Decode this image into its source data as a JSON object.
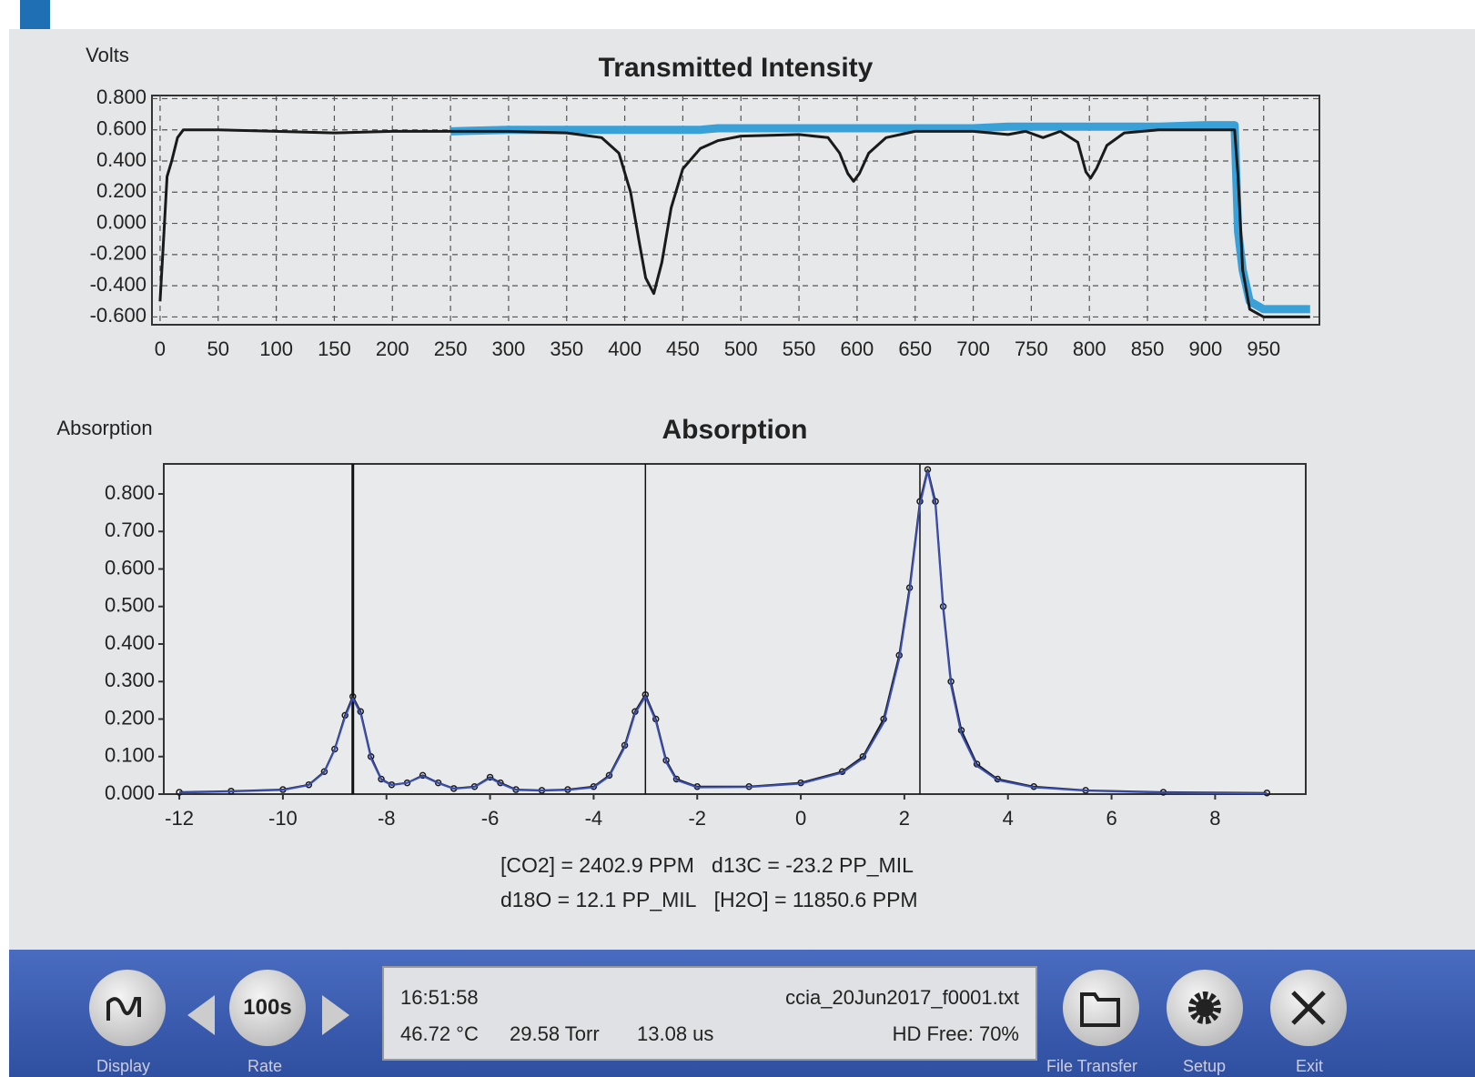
{
  "chart_data": [
    {
      "type": "line",
      "title": "Transmitted Intensity",
      "ylabel": "Volts",
      "x": [
        0,
        3,
        6,
        10,
        15,
        20,
        30,
        50,
        100,
        150,
        200,
        250,
        300,
        350,
        380,
        395,
        405,
        412,
        418,
        425,
        432,
        440,
        450,
        465,
        480,
        500,
        550,
        575,
        585,
        592,
        597,
        602,
        610,
        625,
        650,
        700,
        730,
        745,
        760,
        775,
        790,
        797,
        801,
        806,
        815,
        830,
        860,
        900,
        925,
        928,
        932,
        938,
        950,
        990
      ],
      "series": [
        {
          "color": "#3aa0d8",
          "width": 9,
          "values": [
            null,
            null,
            null,
            null,
            null,
            null,
            null,
            null,
            null,
            null,
            null,
            0.59,
            0.6,
            0.6,
            0.6,
            0.6,
            0.6,
            0.6,
            0.6,
            0.6,
            0.6,
            0.6,
            0.6,
            0.6,
            0.61,
            0.61,
            0.61,
            0.61,
            0.61,
            0.61,
            0.61,
            0.61,
            0.61,
            0.61,
            0.61,
            0.61,
            0.62,
            0.62,
            0.62,
            0.62,
            0.62,
            0.62,
            0.62,
            0.62,
            0.62,
            0.62,
            0.62,
            0.63,
            0.63,
            -0.05,
            -0.3,
            -0.5,
            -0.55,
            -0.55
          ]
        },
        {
          "color": "#1a1a1a",
          "width": 3,
          "values": [
            -0.5,
            -0.1,
            0.3,
            0.4,
            0.55,
            0.6,
            0.6,
            0.6,
            0.59,
            0.58,
            0.59,
            0.59,
            0.59,
            0.58,
            0.55,
            0.45,
            0.2,
            -0.1,
            -0.35,
            -0.45,
            -0.25,
            0.1,
            0.35,
            0.48,
            0.53,
            0.56,
            0.57,
            0.55,
            0.45,
            0.32,
            0.27,
            0.32,
            0.45,
            0.55,
            0.59,
            0.59,
            0.57,
            0.59,
            0.55,
            0.59,
            0.52,
            0.33,
            0.29,
            0.35,
            0.5,
            0.58,
            0.6,
            0.6,
            0.6,
            0.3,
            -0.3,
            -0.55,
            -0.6,
            -0.6
          ]
        }
      ],
      "xlim": [
        -7,
        998
      ],
      "xticks": [
        0,
        50,
        100,
        150,
        200,
        250,
        300,
        350,
        400,
        450,
        500,
        550,
        600,
        650,
        700,
        750,
        800,
        850,
        900,
        950
      ],
      "ylim": [
        -0.65,
        0.82
      ],
      "yticks": [
        {
          "value": -0.6,
          "label": "-0.600"
        },
        {
          "value": -0.4,
          "label": "-0.400"
        },
        {
          "value": -0.2,
          "label": "-0.200"
        },
        {
          "value": 0,
          "label": "0.000"
        },
        {
          "value": 0.2,
          "label": "0.200"
        },
        {
          "value": 0.4,
          "label": "0.400"
        },
        {
          "value": 0.6,
          "label": "0.600"
        },
        {
          "value": 0.8,
          "label": "0.800"
        }
      ],
      "grid": true
    },
    {
      "type": "line",
      "title": "Absorption",
      "ylabel": "Absorption",
      "x": [
        -12,
        -11,
        -10,
        -9.5,
        -9.2,
        -9,
        -8.8,
        -8.65,
        -8.5,
        -8.3,
        -8.1,
        -7.9,
        -7.6,
        -7.3,
        -7.0,
        -6.7,
        -6.3,
        -6.0,
        -5.8,
        -5.5,
        -5,
        -4.5,
        -4,
        -3.7,
        -3.4,
        -3.2,
        -3.0,
        -2.8,
        -2.6,
        -2.4,
        -2,
        -1,
        0,
        0.8,
        1.2,
        1.6,
        1.9,
        2.1,
        2.3,
        2.45,
        2.6,
        2.75,
        2.9,
        3.1,
        3.4,
        3.8,
        4.5,
        5.5,
        7,
        9
      ],
      "series": [
        {
          "color": "#1a1a1a",
          "width": 2,
          "marker": "circle",
          "values": [
            0.005,
            0.008,
            0.012,
            0.025,
            0.06,
            0.12,
            0.21,
            0.26,
            0.22,
            0.1,
            0.04,
            0.025,
            0.03,
            0.05,
            0.03,
            0.015,
            0.02,
            0.045,
            0.03,
            0.012,
            0.01,
            0.012,
            0.02,
            0.05,
            0.13,
            0.22,
            0.265,
            0.2,
            0.09,
            0.04,
            0.02,
            0.02,
            0.03,
            0.06,
            0.1,
            0.2,
            0.37,
            0.55,
            0.78,
            0.865,
            0.78,
            0.5,
            0.3,
            0.17,
            0.08,
            0.04,
            0.02,
            0.01,
            0.005,
            0.003
          ]
        },
        {
          "color": "#3a4fb8",
          "width": 2,
          "values": [
            0.004,
            0.007,
            0.011,
            0.024,
            0.058,
            0.118,
            0.205,
            0.255,
            0.215,
            0.095,
            0.038,
            0.024,
            0.03,
            0.048,
            0.029,
            0.014,
            0.019,
            0.043,
            0.028,
            0.011,
            0.009,
            0.011,
            0.018,
            0.047,
            0.125,
            0.215,
            0.26,
            0.195,
            0.085,
            0.037,
            0.018,
            0.019,
            0.028,
            0.057,
            0.095,
            0.19,
            0.36,
            0.54,
            0.77,
            0.86,
            0.77,
            0.49,
            0.29,
            0.16,
            0.075,
            0.037,
            0.018,
            0.009,
            0.004,
            0.002
          ]
        }
      ],
      "vlines": [
        -8.65,
        -3.0,
        2.3
      ],
      "xlim": [
        -12.3,
        9.75
      ],
      "xticks": [
        -12,
        -10,
        -8,
        -6,
        -4,
        -2,
        0,
        2,
        4,
        6,
        8
      ],
      "ylim": [
        0,
        0.88
      ],
      "yticks": [
        {
          "value": 0,
          "label": "0.000"
        },
        {
          "value": 0.1,
          "label": "0.100"
        },
        {
          "value": 0.2,
          "label": "0.200"
        },
        {
          "value": 0.3,
          "label": "0.300"
        },
        {
          "value": 0.4,
          "label": "0.400"
        },
        {
          "value": 0.5,
          "label": "0.500"
        },
        {
          "value": 0.6,
          "label": "0.600"
        },
        {
          "value": 0.7,
          "label": "0.700"
        },
        {
          "value": 0.8,
          "label": "0.800"
        }
      ],
      "grid": false
    }
  ],
  "readout": [
    "[CO2] = 2402.9 PPM",
    "d13C = -23.2 PP_MIL",
    "d18O = 12.1 PP_MIL",
    "[H2O] = 11850.6 PPM"
  ],
  "status": {
    "time": "16:51:58",
    "file": "ccia_20Jun2017_f0001.txt",
    "temperature": "46.72 °C",
    "pressure": "29.58 Torr",
    "ringdown": "13.08 us",
    "disk": "HD Free: 70%"
  },
  "toolbar": {
    "rate": "100s",
    "labels": [
      "Display",
      "Rate",
      "File Transfer",
      "Setup",
      "Exit"
    ]
  }
}
